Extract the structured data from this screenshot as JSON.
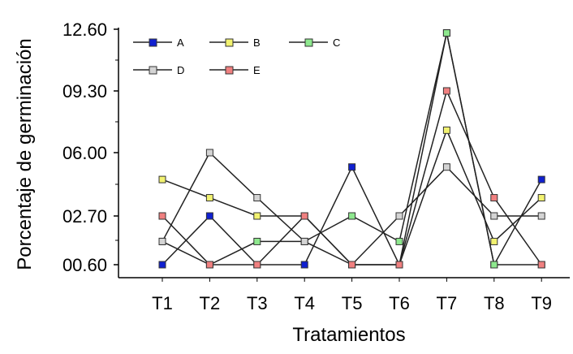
{
  "chart_data": {
    "type": "line",
    "categories": [
      "T1",
      "T2",
      "T3",
      "T4",
      "T5",
      "T6",
      "T7",
      "T8",
      "T9"
    ],
    "yticks": [
      "00.60",
      "02.70",
      "06.00",
      "09.30",
      "12.60"
    ],
    "ylim": [
      0.6,
      12.6
    ],
    "xlabel": "Tratamientos",
    "ylabel": "Porcentaje de germinación",
    "legend_position": "top-left",
    "grid": false,
    "series": [
      {
        "name": "A",
        "color": "#1020d0",
        "values": [
          0.6,
          2.7,
          0.6,
          0.6,
          5.25,
          0.6,
          12.4,
          0.6,
          4.6
        ]
      },
      {
        "name": "B",
        "color": "#f2f270",
        "values": [
          4.6,
          3.65,
          2.7,
          2.7,
          0.6,
          0.6,
          7.2,
          1.6,
          3.65
        ]
      },
      {
        "name": "C",
        "color": "#8ee88e",
        "values": [
          1.6,
          0.6,
          1.6,
          1.6,
          2.7,
          1.6,
          12.4,
          0.6,
          0.6
        ]
      },
      {
        "name": "D",
        "color": "#d4d4d4",
        "values": [
          1.6,
          6.0,
          3.65,
          1.6,
          0.6,
          2.7,
          5.25,
          2.7,
          2.7
        ]
      },
      {
        "name": "E",
        "color": "#f08080",
        "values": [
          2.7,
          0.6,
          0.6,
          2.7,
          0.6,
          0.6,
          9.3,
          3.65,
          0.6
        ]
      }
    ]
  }
}
